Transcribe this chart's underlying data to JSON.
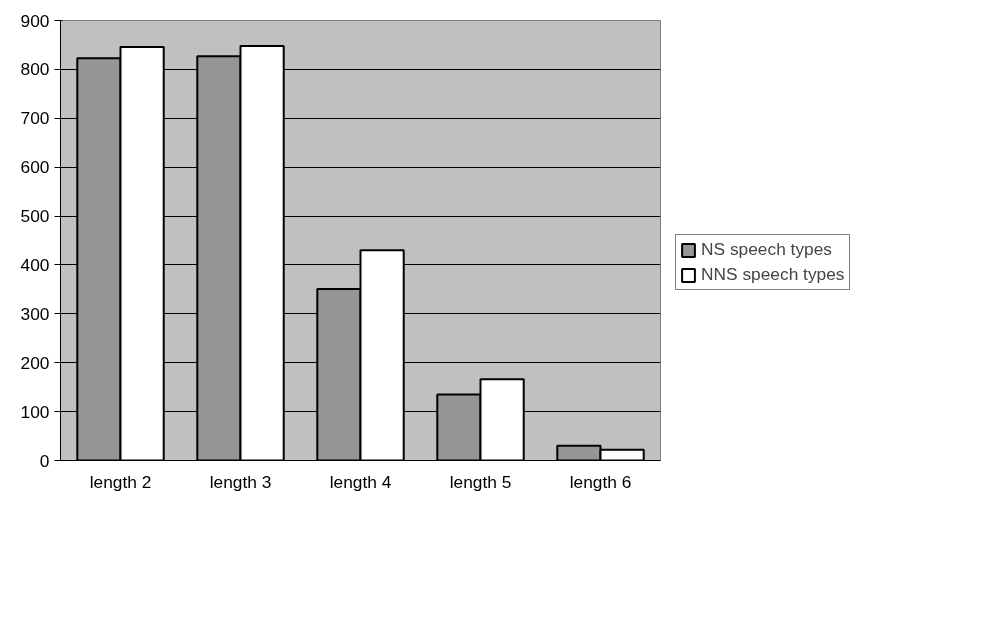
{
  "chart_data": {
    "type": "bar",
    "categories": [
      "length 2",
      "length 3",
      "length 4",
      "length 5",
      "length 6"
    ],
    "series": [
      {
        "name": "NS speech types",
        "color": "#969696",
        "values": [
          823,
          827,
          351,
          135,
          30
        ]
      },
      {
        "name": "NNS speech types",
        "color": "#ffffff",
        "values": [
          846,
          848,
          430,
          166,
          22
        ]
      }
    ],
    "ylim": [
      0,
      900
    ],
    "yticks": [
      0,
      100,
      200,
      300,
      400,
      500,
      600,
      700,
      800,
      900
    ],
    "grid": "y",
    "legend": "right"
  }
}
